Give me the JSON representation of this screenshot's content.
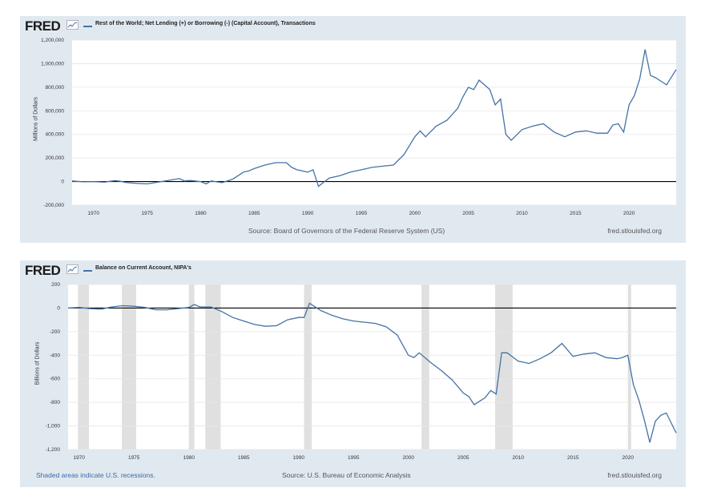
{
  "charts": [
    {
      "logo": "FRED",
      "series_title": "Rest of the World; Net Lending (+) or Borrowing (-) (Capital Account), Transactions",
      "source": "Source: Board of Governors of the Federal Reserve System (US)",
      "site": "fred.stlouisfed.org",
      "line_color": "#4572a7"
    },
    {
      "logo": "FRED",
      "series_title": "Balance on Current Account, NIPA's",
      "source": "Source: U.S. Bureau of Economic Analysis",
      "site": "fred.stlouisfed.org",
      "shaded_note": "Shaded areas indicate U.S. recessions.",
      "line_color": "#4572a7"
    }
  ],
  "chart_data": [
    {
      "type": "line",
      "title": "Rest of the World; Net Lending (+) or Borrowing (-) (Capital Account), Transactions",
      "ylabel": "Millions of Dollars",
      "xlim": [
        1968,
        2024.4
      ],
      "ylim": [
        -200000,
        1200000
      ],
      "x_ticks": [
        1970,
        1975,
        1980,
        1985,
        1990,
        1995,
        2000,
        2005,
        2010,
        2015,
        2020
      ],
      "y_ticks": [
        {
          "v": -200000,
          "label": "-200,000"
        },
        {
          "v": 0,
          "label": "0"
        },
        {
          "v": 200000,
          "label": "200,000"
        },
        {
          "v": 400000,
          "label": "400,000"
        },
        {
          "v": 600000,
          "label": "600,000"
        },
        {
          "v": 800000,
          "label": "800,000"
        },
        {
          "v": 1000000,
          "label": "1,000,000"
        },
        {
          "v": 1200000,
          "label": "1,200,000"
        }
      ],
      "zero_line": true,
      "x": [
        1968,
        1969,
        1970,
        1971,
        1972,
        1972.5,
        1973,
        1974,
        1975,
        1976,
        1977,
        1978,
        1978.5,
        1979,
        1980,
        1980.5,
        1981,
        1982,
        1982.5,
        1983,
        1984,
        1984.5,
        1985,
        1986,
        1987,
        1988,
        1988.5,
        1989,
        1990,
        1990.5,
        1991,
        1992,
        1993,
        1994,
        1995,
        1996,
        1997,
        1998,
        1999,
        2000,
        2000.5,
        2001,
        2002,
        2003,
        2004,
        2004.5,
        2005,
        2005.5,
        2006,
        2006.5,
        2007,
        2007.5,
        2008,
        2008.5,
        2009,
        2010,
        2011,
        2012,
        2013,
        2014,
        2015,
        2016,
        2017,
        2018,
        2018.5,
        2019,
        2019.5,
        2020,
        2020.5,
        2021,
        2021.5,
        2022,
        2022.5,
        2023,
        2023.5,
        2024.4
      ],
      "series": [
        {
          "name": "Rest of the World; Net Lending (+) or Borrowing (-) (Capital Account), Transactions",
          "values": [
            5000,
            -2000,
            0,
            -5000,
            8000,
            3000,
            -8000,
            -15000,
            -20000,
            -5000,
            10000,
            25000,
            5000,
            10000,
            0,
            -20000,
            5000,
            -10000,
            5000,
            20000,
            80000,
            90000,
            110000,
            140000,
            160000,
            160000,
            120000,
            100000,
            80000,
            100000,
            -40000,
            30000,
            50000,
            80000,
            100000,
            120000,
            130000,
            140000,
            230000,
            380000,
            430000,
            380000,
            470000,
            520000,
            620000,
            720000,
            800000,
            780000,
            860000,
            820000,
            780000,
            650000,
            700000,
            400000,
            350000,
            440000,
            470000,
            490000,
            420000,
            380000,
            420000,
            430000,
            410000,
            410000,
            480000,
            490000,
            420000,
            650000,
            730000,
            870000,
            1120000,
            900000,
            880000,
            850000,
            820000,
            950000
          ]
        }
      ]
    },
    {
      "type": "line",
      "title": "Balance on Current Account, NIPA's",
      "ylabel": "Billions of Dollars",
      "xlim": [
        1969,
        2024.4
      ],
      "ylim": [
        -1200,
        200
      ],
      "x_ticks": [
        1970,
        1975,
        1980,
        1985,
        1990,
        1995,
        2000,
        2005,
        2010,
        2015,
        2020
      ],
      "y_ticks": [
        {
          "v": -1200,
          "label": "-1,200"
        },
        {
          "v": -1000,
          "label": "-1,000"
        },
        {
          "v": -800,
          "label": "-800"
        },
        {
          "v": -600,
          "label": "-600"
        },
        {
          "v": -400,
          "label": "-400"
        },
        {
          "v": -200,
          "label": "-200"
        },
        {
          "v": 0,
          "label": "0"
        },
        {
          "v": 200,
          "label": "200"
        }
      ],
      "zero_line": true,
      "recessions": [
        [
          1969.9,
          1970.9
        ],
        [
          1973.9,
          1975.2
        ],
        [
          1980.0,
          1980.5
        ],
        [
          1981.5,
          1982.9
        ],
        [
          1990.5,
          1991.2
        ],
        [
          2001.2,
          2001.9
        ],
        [
          2007.9,
          2009.5
        ],
        [
          2020.0,
          2020.3
        ]
      ],
      "x": [
        1969,
        1970,
        1971,
        1972,
        1973,
        1974,
        1975,
        1976,
        1977,
        1978,
        1979,
        1980,
        1980.5,
        1981,
        1982,
        1983,
        1984,
        1985,
        1986,
        1987,
        1988,
        1989,
        1990,
        1990.5,
        1991,
        1992,
        1993,
        1994,
        1995,
        1996,
        1997,
        1998,
        1999,
        2000,
        2000.5,
        2001,
        2002,
        2003,
        2004,
        2005,
        2005.5,
        2006,
        2006.5,
        2007,
        2007.5,
        2008,
        2008.5,
        2009,
        2010,
        2011,
        2012,
        2013,
        2014,
        2015,
        2016,
        2017,
        2018,
        2019,
        2019.5,
        2020,
        2020.5,
        2021,
        2021.5,
        2022,
        2022.5,
        2023,
        2023.5,
        2024.4
      ],
      "series": [
        {
          "name": "Balance on Current Account, NIPA's",
          "values": [
            0,
            5,
            -5,
            -10,
            10,
            20,
            15,
            5,
            -15,
            -15,
            -5,
            5,
            30,
            10,
            10,
            -30,
            -80,
            -110,
            -140,
            -155,
            -150,
            -100,
            -80,
            -80,
            40,
            -20,
            -60,
            -90,
            -110,
            -120,
            -130,
            -160,
            -230,
            -400,
            -420,
            -380,
            -460,
            -530,
            -610,
            -720,
            -750,
            -820,
            -790,
            -760,
            -700,
            -730,
            -380,
            -380,
            -450,
            -470,
            -430,
            -380,
            -300,
            -410,
            -390,
            -380,
            -420,
            -430,
            -420,
            -400,
            -650,
            -780,
            -950,
            -1140,
            -960,
            -910,
            -890,
            -1060
          ]
        }
      ]
    }
  ]
}
